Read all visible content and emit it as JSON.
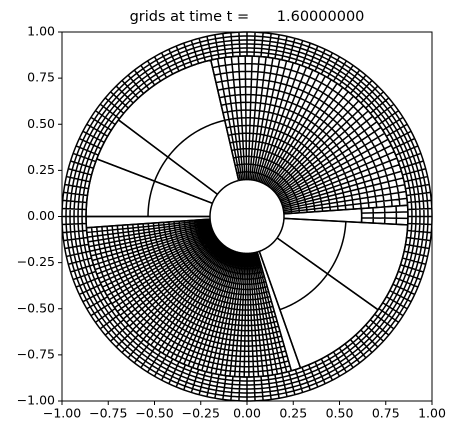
{
  "chart_data": {
    "type": "polar-mesh",
    "title": "grids at time t =      1.60000000",
    "xlim": [
      -1,
      1
    ],
    "ylim": [
      -1,
      1
    ],
    "xticks": [
      {
        "value": -1,
        "label": "−1.00"
      },
      {
        "value": -0.75,
        "label": "−0.75"
      },
      {
        "value": -0.5,
        "label": "−0.50"
      },
      {
        "value": -0.25,
        "label": "−0.25"
      },
      {
        "value": 0,
        "label": "0.00"
      },
      {
        "value": 0.25,
        "label": "0.25"
      },
      {
        "value": 0.5,
        "label": "0.50"
      },
      {
        "value": 0.75,
        "label": "0.75"
      },
      {
        "value": 1,
        "label": "1.00"
      }
    ],
    "yticks": [
      {
        "value": -1,
        "label": "−1.00"
      },
      {
        "value": -0.75,
        "label": "−0.75"
      },
      {
        "value": -0.5,
        "label": "−0.50"
      },
      {
        "value": -0.25,
        "label": "−0.25"
      },
      {
        "value": 0,
        "label": "0.00"
      },
      {
        "value": 0.25,
        "label": "0.25"
      },
      {
        "value": 0.5,
        "label": "0.50"
      },
      {
        "value": 0.75,
        "label": "0.75"
      },
      {
        "value": 1,
        "label": "1.00"
      }
    ],
    "color": "#000000",
    "patches": [
      {
        "r": [
          0.2,
          0.87
        ],
        "theta": [
          103,
          143
        ],
        "n": [
          2,
          1
        ]
      },
      {
        "r": [
          0.2,
          0.87
        ],
        "theta": [
          143,
          159
        ],
        "n": [
          2,
          1
        ]
      },
      {
        "r": [
          0.2,
          0.87
        ],
        "theta": [
          159,
          180
        ],
        "n": [
          2,
          1
        ]
      },
      {
        "r": [
          0.2,
          0.87
        ],
        "theta": [
          180,
          184
        ],
        "n": [
          1,
          1
        ]
      },
      {
        "r": [
          0.2,
          0.87
        ],
        "theta": [
          -74,
          -70.6
        ],
        "n": [
          1,
          1
        ]
      },
      {
        "r": [
          0.2,
          0.87
        ],
        "theta": [
          -70.6,
          -35.5
        ],
        "n": [
          2,
          1
        ]
      },
      {
        "r": [
          0.2,
          0.87
        ],
        "theta": [
          -35.5,
          -3
        ],
        "n": [
          2,
          1
        ]
      },
      {
        "r": [
          0.2,
          0.62
        ],
        "theta": [
          -3,
          4
        ],
        "n": [
          1,
          1
        ]
      },
      {
        "r": [
          0.62,
          0.87
        ],
        "theta": [
          -3,
          4
        ],
        "n": [
          4,
          3
        ]
      },
      {
        "r": [
          0.2,
          0.87
        ],
        "theta": [
          4,
          103
        ],
        "n": [
          16,
          40
        ]
      },
      {
        "r": [
          0.2,
          0.87
        ],
        "theta": [
          184,
          286
        ],
        "n": [
          24,
          60
        ]
      },
      {
        "r": [
          0.87,
          1
        ],
        "theta": [
          0,
          360
        ],
        "n": [
          6,
          144
        ]
      }
    ]
  }
}
